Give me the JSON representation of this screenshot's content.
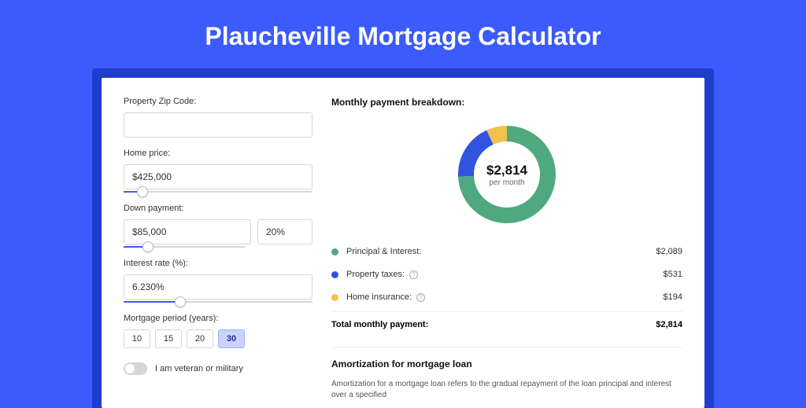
{
  "page": {
    "title": "Plaucheville Mortgage Calculator",
    "background": "#3b5bfd",
    "banner_bg": "#1f3dcc"
  },
  "form": {
    "zip": {
      "label": "Property Zip Code:",
      "value": ""
    },
    "home_price": {
      "label": "Home price:",
      "value": "$425,000",
      "slider_pct": 10
    },
    "down_payment": {
      "label": "Down payment:",
      "value": "$85,000",
      "pct": "20%",
      "slider_pct": 20
    },
    "interest": {
      "label": "Interest rate (%):",
      "value": "6.230%",
      "slider_pct": 30
    },
    "period": {
      "label": "Mortgage period (years):",
      "options": [
        "10",
        "15",
        "20",
        "30"
      ],
      "selected": "30"
    },
    "veteran": {
      "label": "I am veteran or military",
      "on": false
    }
  },
  "breakdown": {
    "title": "Monthly payment breakdown:",
    "center_amount": "$2,814",
    "center_sub": "per month",
    "items": [
      {
        "key": "principal",
        "label": "Principal & Interest:",
        "value": "$2,089",
        "color": "#4fa97f",
        "fraction": 0.742,
        "info": false
      },
      {
        "key": "taxes",
        "label": "Property taxes:",
        "value": "$531",
        "color": "#3253e0",
        "fraction": 0.189,
        "info": true
      },
      {
        "key": "insurance",
        "label": "Home insurance:",
        "value": "$194",
        "color": "#f2c14e",
        "fraction": 0.069,
        "info": true
      }
    ],
    "total": {
      "label": "Total monthly payment:",
      "value": "$2,814"
    },
    "donut": {
      "stroke_width": 20,
      "radius": 52
    }
  },
  "amortization": {
    "title": "Amortization for mortgage loan",
    "body": "Amortization for a mortgage loan refers to the gradual repayment of the loan principal and interest over a specified"
  }
}
